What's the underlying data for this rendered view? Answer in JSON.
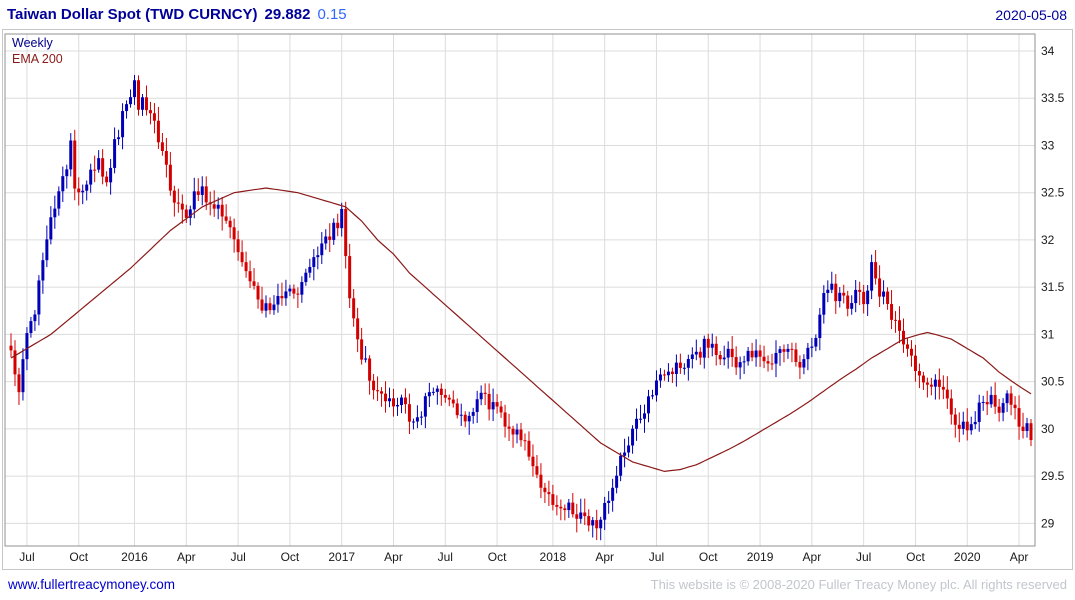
{
  "header": {
    "title": "Taiwan Dollar Spot (TWD CURNCY)",
    "price": "29.882",
    "change": "0.15",
    "date": "2020-05-08"
  },
  "footer": {
    "link": "www.fullertreacymoney.com",
    "copyright": "This website is © 2008-2020 Fuller Treacy Money plc. All rights reserved"
  },
  "chart_data": {
    "type": "candlestick",
    "title": "Taiwan Dollar Spot (TWD CURNCY)",
    "timeframe": "Weekly",
    "overlay": "EMA 200",
    "last_price": 29.882,
    "change": 0.15,
    "date": "2020-05-08",
    "grid": true,
    "weeks_total": 257,
    "y_axis": {
      "min": 28.76,
      "max": 34.18,
      "ticks": [
        "34",
        "33.5",
        "33",
        "32.5",
        "32",
        "31.5",
        "31",
        "30.5",
        "30",
        "29.5",
        "29"
      ]
    },
    "x_ticks": [
      {
        "label": "Jul",
        "week": 4
      },
      {
        "label": "Oct",
        "week": 17
      },
      {
        "label": "2016",
        "week": 31
      },
      {
        "label": "Apr",
        "week": 44
      },
      {
        "label": "Jul",
        "week": 57
      },
      {
        "label": "Oct",
        "week": 70
      },
      {
        "label": "2017",
        "week": 83
      },
      {
        "label": "Apr",
        "week": 96
      },
      {
        "label": "Jul",
        "week": 109
      },
      {
        "label": "Oct",
        "week": 122
      },
      {
        "label": "2018",
        "week": 136
      },
      {
        "label": "Apr",
        "week": 149
      },
      {
        "label": "Jul",
        "week": 162
      },
      {
        "label": "Oct",
        "week": 175
      },
      {
        "label": "2019",
        "week": 188
      },
      {
        "label": "Apr",
        "week": 201
      },
      {
        "label": "Jul",
        "week": 214
      },
      {
        "label": "Oct",
        "week": 227
      },
      {
        "label": "2020",
        "week": 240
      },
      {
        "label": "Apr",
        "week": 253
      }
    ],
    "price_anchors": [
      [
        0,
        30.9
      ],
      [
        1,
        30.55
      ],
      [
        2,
        30.45
      ],
      [
        3,
        30.7
      ],
      [
        4,
        30.95
      ],
      [
        6,
        31.25
      ],
      [
        8,
        31.85
      ],
      [
        10,
        32.25
      ],
      [
        12,
        32.5
      ],
      [
        14,
        32.8
      ],
      [
        15,
        33.05
      ],
      [
        16,
        32.6
      ],
      [
        18,
        32.45
      ],
      [
        20,
        32.7
      ],
      [
        22,
        32.9
      ],
      [
        24,
        32.6
      ],
      [
        26,
        33.0
      ],
      [
        28,
        33.3
      ],
      [
        30,
        33.55
      ],
      [
        31,
        33.75
      ],
      [
        32,
        33.35
      ],
      [
        33,
        33.55
      ],
      [
        34,
        33.3
      ],
      [
        36,
        33.3
      ],
      [
        38,
        32.9
      ],
      [
        40,
        32.6
      ],
      [
        42,
        32.35
      ],
      [
        44,
        32.3
      ],
      [
        46,
        32.45
      ],
      [
        48,
        32.55
      ],
      [
        50,
        32.4
      ],
      [
        52,
        32.3
      ],
      [
        54,
        32.2
      ],
      [
        56,
        32.0
      ],
      [
        58,
        31.8
      ],
      [
        60,
        31.55
      ],
      [
        62,
        31.35
      ],
      [
        64,
        31.3
      ],
      [
        66,
        31.25
      ],
      [
        68,
        31.45
      ],
      [
        70,
        31.55
      ],
      [
        72,
        31.45
      ],
      [
        74,
        31.6
      ],
      [
        76,
        31.8
      ],
      [
        78,
        31.9
      ],
      [
        80,
        32.05
      ],
      [
        82,
        32.2
      ],
      [
        83,
        32.4
      ],
      [
        84,
        31.9
      ],
      [
        85,
        31.4
      ],
      [
        86,
        31.1
      ],
      [
        88,
        30.8
      ],
      [
        90,
        30.55
      ],
      [
        92,
        30.35
      ],
      [
        94,
        30.3
      ],
      [
        96,
        30.2
      ],
      [
        98,
        30.35
      ],
      [
        100,
        30.15
      ],
      [
        102,
        30.1
      ],
      [
        104,
        30.3
      ],
      [
        106,
        30.45
      ],
      [
        108,
        30.35
      ],
      [
        110,
        30.3
      ],
      [
        112,
        30.15
      ],
      [
        114,
        30.1
      ],
      [
        116,
        30.25
      ],
      [
        118,
        30.35
      ],
      [
        120,
        30.25
      ],
      [
        122,
        30.2
      ],
      [
        124,
        30.1
      ],
      [
        126,
        29.95
      ],
      [
        128,
        29.9
      ],
      [
        130,
        29.75
      ],
      [
        132,
        29.5
      ],
      [
        134,
        29.3
      ],
      [
        136,
        29.2
      ],
      [
        138,
        29.1
      ],
      [
        140,
        29.15
      ],
      [
        142,
        29.05
      ],
      [
        144,
        29.1
      ],
      [
        146,
        29.0
      ],
      [
        148,
        29.05
      ],
      [
        150,
        29.25
      ],
      [
        152,
        29.55
      ],
      [
        154,
        29.75
      ],
      [
        156,
        30.0
      ],
      [
        158,
        30.15
      ],
      [
        160,
        30.3
      ],
      [
        162,
        30.45
      ],
      [
        164,
        30.55
      ],
      [
        166,
        30.65
      ],
      [
        168,
        30.6
      ],
      [
        170,
        30.7
      ],
      [
        172,
        30.75
      ],
      [
        174,
        30.9
      ],
      [
        176,
        30.85
      ],
      [
        178,
        30.75
      ],
      [
        180,
        30.8
      ],
      [
        182,
        30.7
      ],
      [
        184,
        30.75
      ],
      [
        186,
        30.8
      ],
      [
        188,
        30.75
      ],
      [
        190,
        30.7
      ],
      [
        192,
        30.8
      ],
      [
        194,
        30.75
      ],
      [
        196,
        30.8
      ],
      [
        198,
        30.7
      ],
      [
        200,
        30.85
      ],
      [
        202,
        30.9
      ],
      [
        204,
        31.4
      ],
      [
        205,
        31.55
      ],
      [
        206,
        31.5
      ],
      [
        207,
        31.3
      ],
      [
        208,
        31.45
      ],
      [
        210,
        31.35
      ],
      [
        212,
        31.45
      ],
      [
        214,
        31.3
      ],
      [
        215,
        31.5
      ],
      [
        216,
        31.7
      ],
      [
        217,
        31.55
      ],
      [
        218,
        31.45
      ],
      [
        220,
        31.3
      ],
      [
        222,
        31.1
      ],
      [
        224,
        30.9
      ],
      [
        226,
        30.7
      ],
      [
        228,
        30.55
      ],
      [
        230,
        30.45
      ],
      [
        232,
        30.5
      ],
      [
        234,
        30.35
      ],
      [
        236,
        30.15
      ],
      [
        238,
        30.05
      ],
      [
        240,
        29.95
      ],
      [
        242,
        30.1
      ],
      [
        244,
        30.3
      ],
      [
        246,
        30.35
      ],
      [
        248,
        30.25
      ],
      [
        250,
        30.3
      ],
      [
        252,
        30.2
      ],
      [
        253,
        30.1
      ],
      [
        254,
        30.0
      ],
      [
        255,
        30.05
      ],
      [
        256,
        29.882
      ]
    ],
    "ema_anchors": [
      [
        0,
        30.75
      ],
      [
        10,
        31.0
      ],
      [
        20,
        31.35
      ],
      [
        30,
        31.7
      ],
      [
        40,
        32.1
      ],
      [
        48,
        32.35
      ],
      [
        56,
        32.5
      ],
      [
        64,
        32.55
      ],
      [
        72,
        32.5
      ],
      [
        80,
        32.4
      ],
      [
        84,
        32.35
      ],
      [
        88,
        32.2
      ],
      [
        92,
        32.0
      ],
      [
        96,
        31.85
      ],
      [
        100,
        31.65
      ],
      [
        104,
        31.5
      ],
      [
        108,
        31.35
      ],
      [
        112,
        31.2
      ],
      [
        116,
        31.05
      ],
      [
        120,
        30.9
      ],
      [
        124,
        30.75
      ],
      [
        128,
        30.6
      ],
      [
        132,
        30.45
      ],
      [
        136,
        30.3
      ],
      [
        140,
        30.15
      ],
      [
        144,
        30.0
      ],
      [
        148,
        29.85
      ],
      [
        152,
        29.75
      ],
      [
        156,
        29.65
      ],
      [
        160,
        29.6
      ],
      [
        164,
        29.55
      ],
      [
        168,
        29.57
      ],
      [
        172,
        29.62
      ],
      [
        176,
        29.7
      ],
      [
        180,
        29.78
      ],
      [
        184,
        29.87
      ],
      [
        188,
        29.97
      ],
      [
        192,
        30.07
      ],
      [
        196,
        30.17
      ],
      [
        200,
        30.28
      ],
      [
        204,
        30.4
      ],
      [
        208,
        30.52
      ],
      [
        212,
        30.63
      ],
      [
        216,
        30.75
      ],
      [
        220,
        30.85
      ],
      [
        224,
        30.95
      ],
      [
        228,
        31.0
      ],
      [
        230,
        31.02
      ],
      [
        232,
        31.0
      ],
      [
        236,
        30.95
      ],
      [
        240,
        30.85
      ],
      [
        244,
        30.75
      ],
      [
        248,
        30.6
      ],
      [
        252,
        30.48
      ],
      [
        256,
        30.37
      ]
    ],
    "colors": {
      "up": "#0000b8",
      "down": "#d40000",
      "ema": "#8b1a1a",
      "grid": "#dcdcdc",
      "border": "#909090",
      "axis_text": "#1a1a1a"
    }
  }
}
